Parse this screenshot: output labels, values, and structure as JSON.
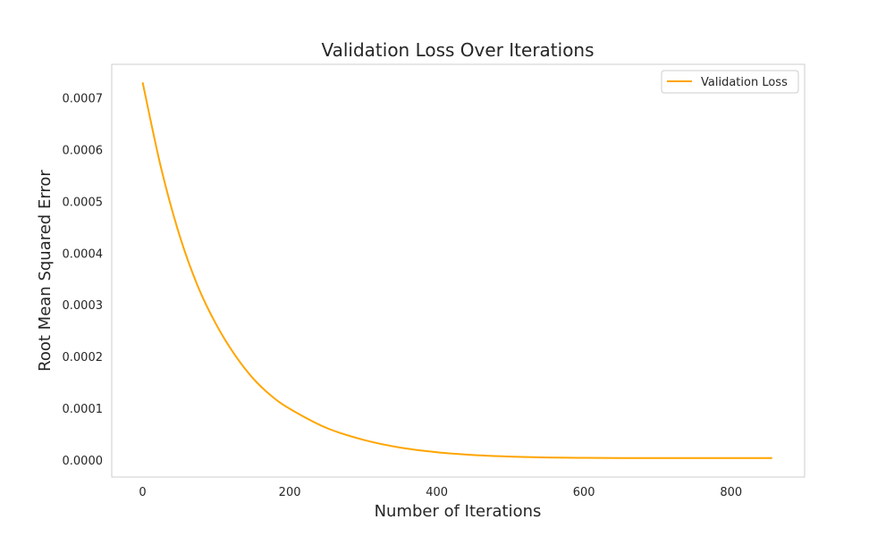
{
  "chart_data": {
    "type": "line",
    "title": "Validation Loss Over Iterations",
    "xlabel": "Number of Iterations",
    "ylabel": "Root Mean Squared Error",
    "xlim": [
      -42,
      900
    ],
    "ylim": [
      -3.3e-05,
      0.000765
    ],
    "xticks": [
      0,
      200,
      400,
      600,
      800
    ],
    "yticks": [
      0.0,
      0.0001,
      0.0002,
      0.0003,
      0.0004,
      0.0005,
      0.0006,
      0.0007
    ],
    "ytick_labels": [
      "0.0000",
      "0.0001",
      "0.0002",
      "0.0003",
      "0.0004",
      "0.0005",
      "0.0006",
      "0.0007"
    ],
    "grid": false,
    "legend_position": "top-right",
    "series": [
      {
        "name": "Validation Loss",
        "color": "#FFA500",
        "x": [
          0,
          25,
          50,
          75,
          100,
          125,
          150,
          175,
          200,
          250,
          300,
          350,
          400,
          450,
          500,
          550,
          600,
          650,
          700,
          750,
          800,
          856
        ],
        "y": [
          0.00073,
          0.000565,
          0.000435,
          0.000336,
          0.000262,
          0.000204,
          0.000158,
          0.000124,
          9.9e-05,
          6.2e-05,
          3.9e-05,
          2.4e-05,
          1.5e-05,
          9.5e-06,
          6.5e-06,
          4.8e-06,
          4.1e-06,
          3.8e-06,
          3.7e-06,
          3.7e-06,
          3.7e-06,
          3.7e-06
        ]
      }
    ]
  }
}
